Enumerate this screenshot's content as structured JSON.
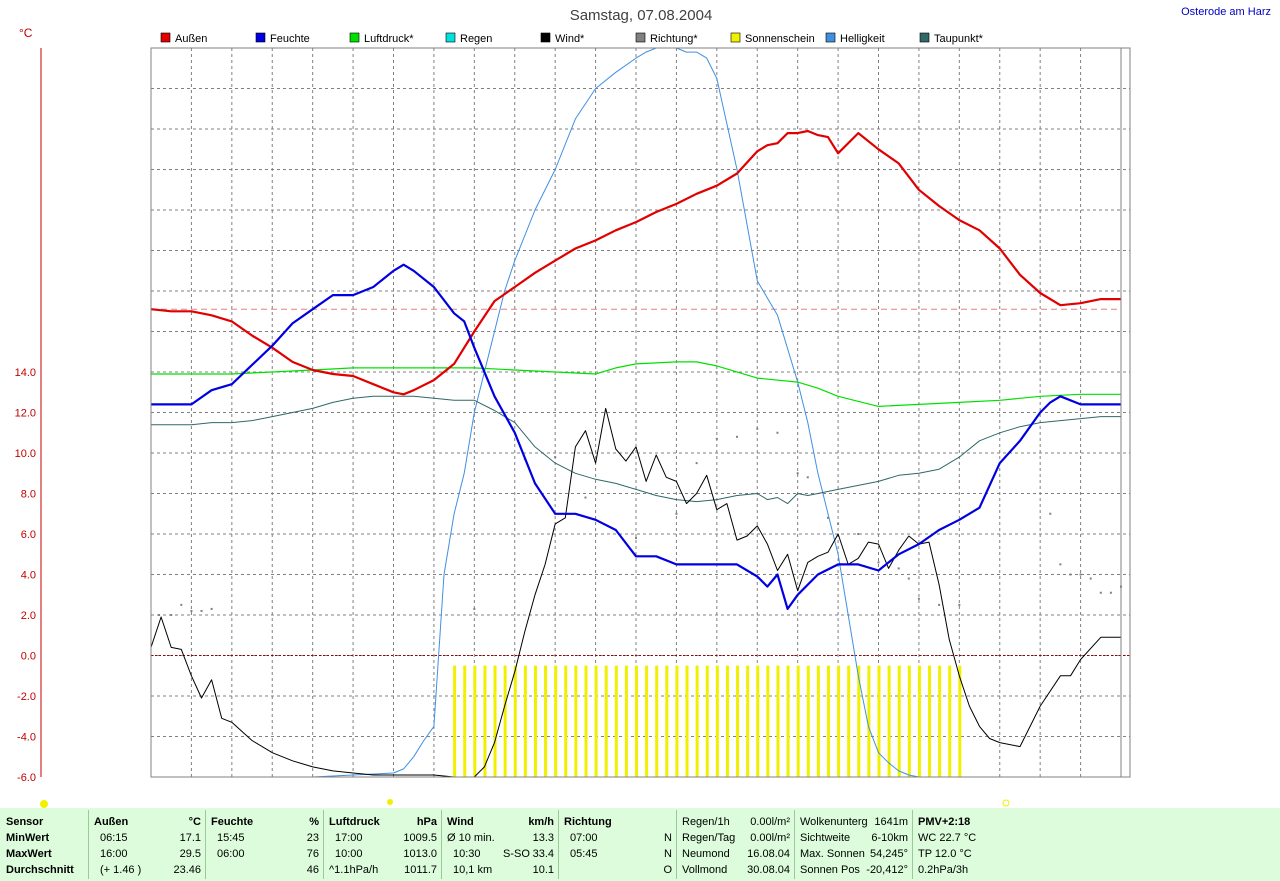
{
  "title": "Samstag, 07.08.2004",
  "location": "Osterode am Harz",
  "y_unit": "°C",
  "legend": [
    {
      "label": "Außen",
      "color": "#e00000"
    },
    {
      "label": "Feuchte",
      "color": "#0000e0"
    },
    {
      "label": "Luftdruck*",
      "color": "#00e000"
    },
    {
      "label": "Regen",
      "color": "#00e0e0"
    },
    {
      "label": "Wind*",
      "color": "#000000"
    },
    {
      "label": "Richtung*",
      "color": "#808080"
    },
    {
      "label": "Sonnenschein",
      "color": "#f0f000"
    },
    {
      "label": "Helligkeit",
      "color": "#4090e0"
    },
    {
      "label": "Taupunkt*",
      "color": "#306868"
    }
  ],
  "chart_data": {
    "type": "line",
    "title": "Samstag, 07.08.2004",
    "ylabel": "°C",
    "ylim": [
      -6,
      30
    ],
    "y_ticks": [
      14.0,
      12.0,
      10.0,
      8.0,
      6.0,
      4.0,
      2.0,
      0.0,
      -2.0,
      -4.0,
      -6.0
    ],
    "xlim": [
      0,
      24
    ],
    "grid": true,
    "legend_position": "top",
    "reference_line": 17.1,
    "series": [
      {
        "name": "Außen",
        "color": "#e00000",
        "x": [
          0,
          0.5,
          1,
          1.5,
          2,
          2.5,
          3,
          3.5,
          4,
          4.5,
          5,
          5.5,
          6,
          6.25,
          6.5,
          7,
          7.5,
          8,
          8.5,
          9,
          9.5,
          10,
          10.5,
          11,
          11.5,
          12,
          12.5,
          13,
          13.5,
          14,
          14.5,
          15,
          15.25,
          15.5,
          15.75,
          16,
          16.25,
          16.5,
          16.75,
          17,
          17.5,
          18,
          18.5,
          19,
          19.5,
          20,
          20.5,
          21,
          21.5,
          22,
          22.5,
          23,
          23.5,
          24
        ],
        "values": [
          17.1,
          17.0,
          17.0,
          16.8,
          16.5,
          15.8,
          15.2,
          14.5,
          14.1,
          13.9,
          13.8,
          13.4,
          13.0,
          12.9,
          13.1,
          13.6,
          14.4,
          16.0,
          17.5,
          18.2,
          18.9,
          19.5,
          20.1,
          20.5,
          21.0,
          21.4,
          21.9,
          22.3,
          22.8,
          23.2,
          23.8,
          24.9,
          25.2,
          25.3,
          25.8,
          25.8,
          25.9,
          25.7,
          25.6,
          24.8,
          25.8,
          25.0,
          24.3,
          23.0,
          22.2,
          21.5,
          21.0,
          20.1,
          18.8,
          17.9,
          17.3,
          17.4,
          17.6,
          17.6
        ]
      },
      {
        "name": "Feuchte",
        "color": "#0000e0",
        "x": [
          0,
          1,
          1.5,
          2,
          3,
          3.5,
          4,
          4.5,
          5,
          5.5,
          6,
          6.25,
          6.5,
          7,
          7.5,
          7.75,
          8,
          8.5,
          9,
          9.5,
          10,
          10.5,
          11,
          11.5,
          12,
          12.5,
          13,
          13.5,
          14,
          14.5,
          15,
          15.25,
          15.5,
          15.75,
          16,
          16.25,
          16.5,
          17,
          17.5,
          18,
          18.5,
          19,
          19.5,
          20,
          20.5,
          21,
          21.5,
          22,
          22.25,
          22.5,
          23,
          23.5,
          24
        ],
        "values": [
          12.4,
          12.4,
          13.1,
          13.4,
          15.3,
          16.4,
          17.1,
          17.8,
          17.8,
          18.2,
          19.0,
          19.3,
          19.0,
          18.2,
          16.9,
          16.5,
          15.2,
          12.8,
          11.0,
          8.5,
          7.0,
          7.0,
          6.7,
          6.2,
          4.9,
          4.9,
          4.5,
          4.5,
          4.5,
          4.5,
          3.9,
          3.4,
          4.0,
          2.3,
          3.0,
          3.5,
          4.0,
          4.5,
          4.5,
          4.2,
          5.0,
          5.5,
          6.2,
          6.7,
          7.3,
          9.5,
          10.6,
          12.0,
          12.5,
          12.8,
          12.4,
          12.4,
          12.4
        ]
      },
      {
        "name": "Luftdruck*",
        "color": "#00e000",
        "x": [
          0,
          1,
          2,
          3,
          4,
          5,
          6,
          7,
          8,
          9,
          10,
          11,
          11.5,
          12,
          13,
          13.5,
          14,
          15,
          16,
          16.5,
          17,
          18,
          19,
          20,
          21,
          22,
          23,
          24
        ],
        "values": [
          13.9,
          13.9,
          13.9,
          14.0,
          14.1,
          14.2,
          14.2,
          14.2,
          14.2,
          14.1,
          14.0,
          13.9,
          14.2,
          14.4,
          14.5,
          14.5,
          14.3,
          13.7,
          13.5,
          13.2,
          12.8,
          12.3,
          12.4,
          12.5,
          12.6,
          12.8,
          12.9,
          12.9
        ]
      },
      {
        "name": "Regen",
        "color": "#00e0e0",
        "x": [
          0,
          24
        ],
        "values": [
          -6.0,
          -6.0
        ]
      },
      {
        "name": "Wind*",
        "color": "#000000",
        "x": [
          0,
          0.25,
          0.5,
          0.75,
          1,
          1.25,
          1.5,
          1.75,
          2,
          2.5,
          3,
          3.5,
          4,
          4.5,
          5,
          5.5,
          6,
          6.5,
          7,
          7.5,
          8,
          8.25,
          8.5,
          8.75,
          9,
          9.25,
          9.5,
          9.75,
          10,
          10.25,
          10.5,
          10.75,
          11,
          11.25,
          11.5,
          11.75,
          12,
          12.25,
          12.5,
          12.75,
          13,
          13.25,
          13.5,
          13.75,
          14,
          14.25,
          14.5,
          14.75,
          15,
          15.25,
          15.5,
          15.75,
          16,
          16.25,
          16.5,
          16.75,
          17,
          17.25,
          17.5,
          17.75,
          18,
          18.25,
          18.5,
          18.75,
          19,
          19.25,
          19.5,
          19.75,
          20,
          20.25,
          20.5,
          20.75,
          21,
          21.5,
          22,
          22.5,
          22.75,
          23,
          23.5,
          24
        ],
        "values": [
          0.4,
          1.9,
          0.4,
          0.3,
          -1.0,
          -2.1,
          -1.2,
          -3.1,
          -3.3,
          -4.2,
          -4.8,
          -5.2,
          -5.5,
          -5.7,
          -5.8,
          -5.9,
          -5.9,
          -5.9,
          -5.9,
          -6.0,
          -6.0,
          -5.5,
          -4.3,
          -2.5,
          -0.8,
          1.2,
          3.0,
          4.5,
          6.5,
          6.8,
          10.3,
          11.1,
          9.5,
          12.2,
          10.2,
          9.6,
          10.3,
          8.6,
          9.9,
          8.8,
          8.6,
          7.5,
          8.0,
          8.9,
          7.2,
          7.5,
          5.7,
          5.9,
          6.4,
          5.5,
          4.2,
          5.0,
          3.2,
          4.6,
          4.9,
          5.1,
          6.0,
          4.5,
          4.8,
          5.6,
          5.5,
          4.3,
          5.2,
          5.9,
          5.5,
          5.6,
          3.5,
          0.8,
          -1.0,
          -2.5,
          -3.5,
          -4.1,
          -4.3,
          -4.5,
          -2.5,
          -1.0,
          -1.0,
          -0.2,
          0.9,
          0.9
        ]
      },
      {
        "name": "Richtung*",
        "color": "#808080",
        "x": [
          0.2,
          0.5,
          0.75,
          1,
          1.25,
          1.5,
          8,
          9.25,
          10,
          10.75,
          12,
          13,
          13.5,
          14,
          14.5,
          15,
          15.5,
          16,
          16.25,
          16.75,
          17,
          17.5,
          18,
          18.5,
          18.75,
          19,
          19.5,
          20,
          22.25,
          22.5,
          22.75,
          23,
          23.25,
          23.5,
          23.75,
          24
        ],
        "values": [
          2.0,
          2.0,
          2.5,
          2.2,
          2.2,
          2.3,
          2.3,
          9.7,
          9.8,
          7.8,
          5.8,
          7.0,
          9.5,
          10.7,
          10.8,
          11.2,
          11.0,
          9.0,
          8.8,
          6.8,
          6.5,
          6.0,
          4.6,
          4.3,
          3.8,
          2.8,
          2.5,
          2.5,
          7.0,
          4.5,
          4.0,
          4.0,
          3.8,
          3.1,
          3.1,
          3.4
        ]
      },
      {
        "name": "Helligkeit",
        "color": "#4090e0",
        "x": [
          0,
          2,
          4,
          5,
          6,
          6.25,
          6.5,
          6.75,
          7,
          7.25,
          7.5,
          7.75,
          8,
          8.25,
          8.5,
          8.75,
          9,
          9.5,
          10,
          10.5,
          11,
          11.5,
          12,
          12.25,
          12.5,
          12.75,
          13,
          13.25,
          13.5,
          13.75,
          14,
          14.5,
          15,
          15.5,
          16,
          16.25,
          16.5,
          16.75,
          17,
          17.25,
          17.5,
          17.75,
          18,
          18.25,
          18.5,
          18.75,
          19,
          19.5,
          20,
          20.5,
          21,
          21.5,
          22,
          22.5,
          23,
          23.5,
          24
        ],
        "values": [
          -6.0,
          -6.0,
          -6.0,
          -5.9,
          -5.8,
          -5.6,
          -5.0,
          -4.2,
          -3.5,
          4.0,
          7.0,
          9.0,
          12.0,
          14.0,
          16.0,
          18.0,
          19.5,
          22.0,
          24.0,
          26.5,
          28.0,
          28.8,
          29.5,
          29.8,
          30.0,
          30.0,
          30.0,
          29.8,
          29.8,
          29.5,
          28.5,
          24.0,
          18.5,
          16.8,
          13.5,
          11.5,
          9.0,
          7.0,
          5.0,
          2.0,
          -1.0,
          -3.5,
          -4.8,
          -5.3,
          -5.7,
          -5.9,
          -6.0,
          -6.0,
          -6.0,
          -6.0,
          -6.0,
          -6.0,
          -6.0,
          -6.0,
          -6.0,
          -6.0,
          -6.0
        ]
      },
      {
        "name": "Taupunkt*",
        "color": "#306868",
        "x": [
          0,
          1,
          1.5,
          2,
          2.5,
          3,
          3.5,
          4,
          4.5,
          5,
          5.5,
          6,
          6.5,
          7,
          7.5,
          8,
          8.5,
          9,
          9.5,
          10,
          10.5,
          11,
          11.5,
          12,
          12.5,
          13,
          13.5,
          14,
          14.5,
          15,
          15.25,
          15.5,
          15.75,
          16,
          16.25,
          16.5,
          17,
          17.5,
          18,
          18.5,
          19,
          19.5,
          20,
          20.5,
          21,
          21.5,
          22,
          22.5,
          23,
          23.5,
          24
        ],
        "values": [
          11.4,
          11.4,
          11.5,
          11.5,
          11.6,
          11.8,
          12.0,
          12.2,
          12.5,
          12.7,
          12.8,
          12.8,
          12.8,
          12.7,
          12.6,
          12.6,
          12.1,
          11.5,
          10.3,
          9.5,
          9.0,
          8.7,
          8.5,
          8.2,
          7.9,
          7.7,
          7.6,
          7.7,
          7.9,
          8.0,
          7.7,
          7.8,
          7.5,
          8.0,
          7.9,
          8.0,
          8.2,
          8.4,
          8.6,
          8.9,
          9.0,
          9.2,
          9.8,
          10.6,
          11.0,
          11.3,
          11.5,
          11.6,
          11.7,
          11.8,
          11.8
        ]
      }
    ],
    "sunshine_bars": {
      "color": "#f0f000",
      "from": 7.5,
      "to": 20.0,
      "top": -0.5,
      "bottom": -6.0
    }
  },
  "footer": {
    "sensor": {
      "head": "Sensor",
      "min": "MinWert",
      "max": "MaxWert",
      "avg": "Durchschnitt"
    },
    "aussen": {
      "head": "Außen",
      "unit": "°C",
      "min_time": "06:15",
      "min_val": "17.1",
      "max_time": "16:00",
      "max_val": "29.5",
      "avg_time": "(+ 1.46 )",
      "avg_val": "23.46"
    },
    "feuchte": {
      "head": "Feuchte",
      "unit": "%",
      "min_time": "15:45",
      "min_val": "23",
      "max_time": "06:00",
      "max_val": "76",
      "avg_time": "",
      "avg_val": "46"
    },
    "luftdruck": {
      "head": "Luftdruck",
      "unit": "hPa",
      "min_time": "17:00",
      "min_val": "1009.5",
      "max_time": "10:00",
      "max_val": "1013.0",
      "avg_time": "^1.1hPa/h",
      "avg_val": "1011.7"
    },
    "wind": {
      "head": "Wind",
      "unit": "km/h",
      "min_time": "Ø 10 min.",
      "min_val": "13.3",
      "max_time": "10:30",
      "max_dir": "S-SO",
      "max_val": "33.4",
      "avg_time": "10,1 km",
      "avg_val": "10.1"
    },
    "richtung": {
      "head": "Richtung",
      "min_time": "07:00",
      "min_val": "N",
      "max_time": "05:45",
      "max_val": "N",
      "avg_val": "O"
    },
    "regen": {
      "r1_label": "Regen/1h",
      "r1_val": "0.00l/m²",
      "r2_label": "Regen/Tag",
      "r2_val": "0.00l/m²",
      "r3_label": "Neumond",
      "r3_val": "16.08.04",
      "r4_label": "Vollmond",
      "r4_val": "30.08.04"
    },
    "wolken": {
      "r1_label": "Wolkenunterg",
      "r1_val": "1641m",
      "r2_label": "Sichtweite",
      "r2_val": "6-10km",
      "r3_label": "Max. Sonnen",
      "r3_val": "54,245°",
      "r4_label": "Sonnen Pos",
      "r4_val": "-20,412°"
    },
    "pmv": {
      "head": "PMV+2:18",
      "r2": "WC 22.7 °C",
      "r3": "TP 12.0 °C",
      "r4": "0.2hPa/3h"
    }
  }
}
